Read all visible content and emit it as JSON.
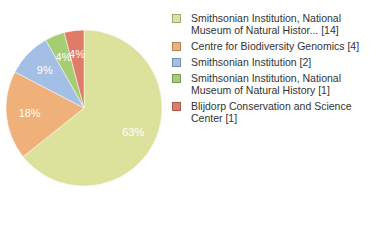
{
  "chart_data": {
    "type": "pie",
    "categories": [
      "Smithsonian Institution, National Museum of Natural Histor... [14]",
      "Centre for Biodiversity Genomics [4]",
      "Smithsonian Institution [2]",
      "Smithsonian Institution, National Museum of Natural History [1]",
      "Blijdorp Conservation and Science Center [1]"
    ],
    "values": [
      63,
      18,
      9,
      4,
      4
    ],
    "value_labels": [
      "63%",
      "18%",
      "9%",
      "4%",
      "4%"
    ],
    "colors": [
      "#dce29c",
      "#f0b07a",
      "#a3bfe5",
      "#a6cc74",
      "#e07b68"
    ],
    "data_labels": true,
    "legend": "right"
  }
}
